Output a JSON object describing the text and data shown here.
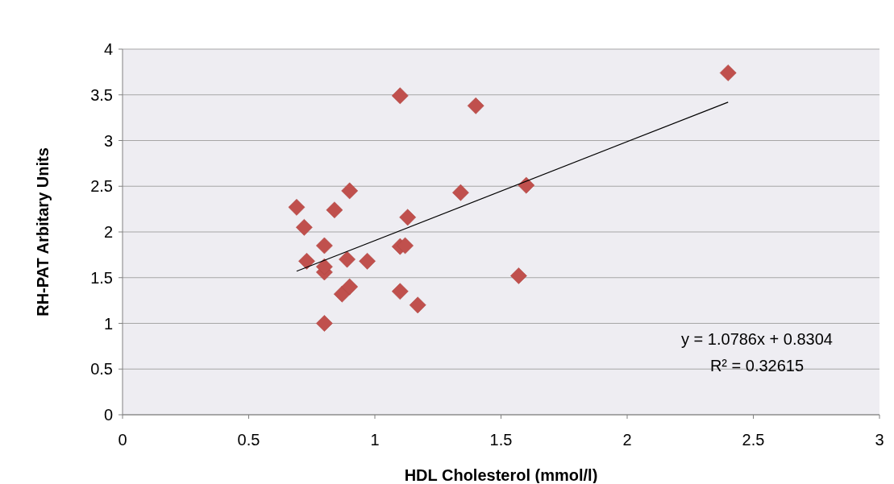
{
  "chart_data": {
    "type": "scatter",
    "xlabel": "HDL Cholesterol (mmol/l)",
    "ylabel": "RH-PAT Arbitary Units",
    "xlim": [
      0,
      3
    ],
    "xticks": [
      0,
      0.5,
      1,
      1.5,
      2,
      2.5,
      3
    ],
    "ylim": [
      0,
      4
    ],
    "yticks": [
      0,
      0.5,
      1,
      1.5,
      2,
      2.5,
      3,
      3.5,
      4
    ],
    "grid": "y",
    "series": [
      {
        "color": "#c0504d",
        "marker": "diamond",
        "x": [
          0.69,
          0.72,
          0.73,
          0.8,
          0.8,
          0.8,
          0.8,
          0.84,
          0.9,
          0.87,
          0.9,
          0.89,
          0.97,
          1.1,
          1.1,
          1.12,
          1.13,
          1.1,
          1.17,
          1.34,
          1.4,
          1.57,
          1.6,
          2.4
        ],
        "values": [
          2.27,
          2.05,
          1.68,
          1.85,
          1.56,
          1.62,
          1.0,
          2.24,
          2.45,
          1.32,
          1.4,
          1.7,
          1.68,
          3.49,
          1.84,
          1.85,
          2.16,
          1.35,
          1.2,
          2.43,
          3.38,
          1.52,
          2.51,
          3.74
        ]
      },
      {
        "type": "line",
        "marker": "none",
        "color": "#000000",
        "x": [
          0.69,
          2.4
        ],
        "values": [
          1.57,
          3.42
        ]
      }
    ],
    "annotations": [
      "y = 1.0786x + 0.8304",
      "R² = 0.32615"
    ]
  }
}
